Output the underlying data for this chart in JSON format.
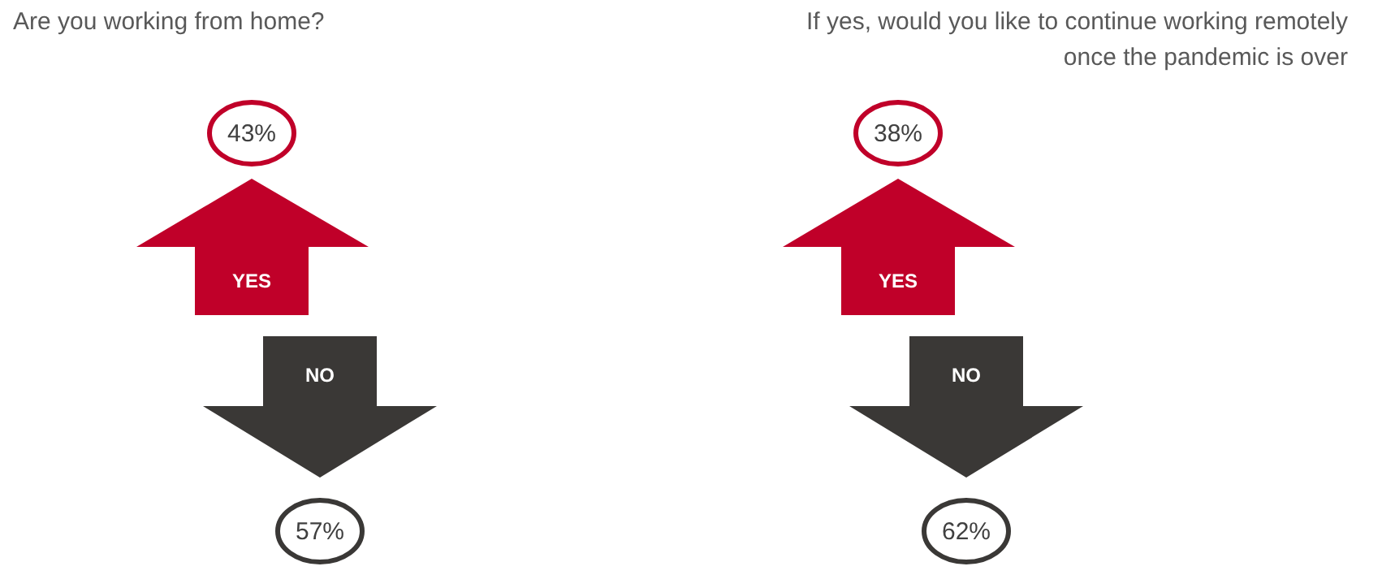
{
  "chart_data": [
    {
      "type": "other",
      "title": "Are you working from home?",
      "categories": [
        "YES",
        "NO"
      ],
      "values": [
        43,
        57
      ],
      "value_labels": [
        "43%",
        "57%"
      ],
      "colors": [
        "#c00029",
        "#3a3836"
      ]
    },
    {
      "type": "other",
      "title": "If yes, would you like to continue working remotely once the pandemic is over",
      "categories": [
        "YES",
        "NO"
      ],
      "values": [
        38,
        62
      ],
      "value_labels": [
        "38%",
        "62%"
      ],
      "colors": [
        "#c00029",
        "#3a3836"
      ]
    }
  ]
}
